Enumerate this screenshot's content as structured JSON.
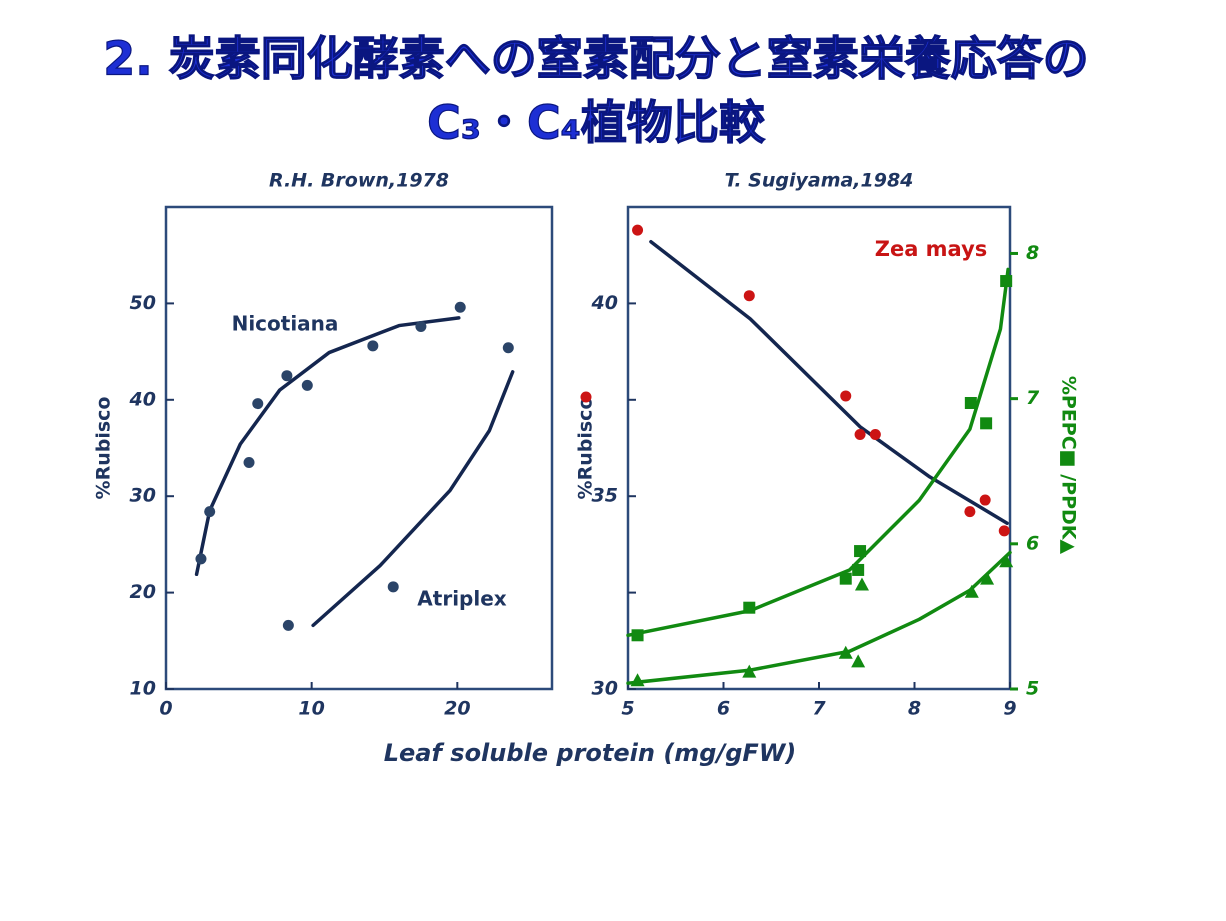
{
  "title": [
    "2. 炭素同化酵素への窒素配分と窒素栄養応答の",
    "C₃・C₄植物比較"
  ],
  "xlabel": "Leaf soluble protein (mg/gFW)",
  "chart_data": [
    {
      "type": "scatter",
      "source": "R.H. Brown,1978",
      "ylabel": "%Rubisco",
      "axis_color": "#1f3560",
      "xlim": [
        0,
        26.5
      ],
      "ylim": [
        10,
        60
      ],
      "xticks": [
        0,
        10,
        20
      ],
      "yticks": [
        10,
        20,
        30,
        40,
        50
      ],
      "series": [
        {
          "name": "Nicotiana",
          "color": "#2b4468",
          "marker": "circle",
          "x": [
            2.4,
            3.0,
            5.7,
            6.3,
            8.3,
            9.7,
            14.2,
            17.5,
            20.2
          ],
          "values": [
            23.5,
            28.4,
            33.5,
            39.6,
            42.5,
            41.5,
            45.6,
            47.6,
            49.6
          ]
        },
        {
          "name": "Atriplex",
          "color": "#2b4468",
          "marker": "circle",
          "x": [
            8.4,
            15.6,
            23.5
          ],
          "values": [
            16.6,
            20.6,
            45.4
          ]
        }
      ],
      "fits": [
        {
          "color": "#14264f",
          "x": [
            2.1,
            3.0,
            5.1,
            7.8,
            11.2,
            16.0,
            20.1
          ],
          "values": [
            21.9,
            28.5,
            35.4,
            41.0,
            44.9,
            47.7,
            48.5
          ]
        },
        {
          "color": "#14264f",
          "x": [
            10.1,
            14.7,
            19.5,
            22.2,
            23.8
          ],
          "values": [
            16.6,
            22.8,
            30.6,
            36.8,
            42.9
          ]
        }
      ]
    },
    {
      "type": "scatter",
      "source": "T. Sugiyama,1984",
      "ylabel": "%Rubisco",
      "y2label": "%PEPC■ /PPDK▲",
      "axis_color": "#1f3560",
      "y2_color": "#118a11",
      "annotation": "Zea mays",
      "annotation_color": "#c81414",
      "xlim": [
        5,
        9
      ],
      "ylim": [
        30,
        42.5
      ],
      "y2lim": [
        5,
        8.32
      ],
      "xticks": [
        5,
        6,
        7,
        8,
        9
      ],
      "yticks": [
        30,
        35,
        40
      ],
      "yminor_ticks": [
        32.5,
        37.5
      ],
      "y2ticks": [
        5,
        6,
        7,
        8
      ],
      "series": [
        {
          "color": "#cc1414",
          "marker": "circle",
          "x": [
            5.1,
            6.27,
            7.28,
            7.43,
            7.59,
            8.58,
            8.74,
            8.94
          ],
          "values": [
            41.9,
            40.2,
            37.6,
            36.6,
            36.6,
            34.6,
            34.9,
            34.1
          ]
        },
        {
          "color": "#118a11",
          "marker": "square",
          "axis": "y2",
          "x": [
            5.1,
            6.27,
            7.28,
            7.41,
            7.43,
            8.59,
            8.75,
            8.96
          ],
          "values": [
            5.37,
            5.56,
            5.76,
            5.82,
            5.95,
            6.97,
            6.83,
            7.81
          ]
        },
        {
          "color": "#118a11",
          "marker": "triangle",
          "axis": "y2",
          "x": [
            5.1,
            6.27,
            7.28,
            7.41,
            7.45,
            8.6,
            8.76,
            8.96
          ],
          "values": [
            5.06,
            5.12,
            5.25,
            5.19,
            5.72,
            5.67,
            5.76,
            5.88
          ]
        }
      ],
      "fits": [
        {
          "color": "#14264f",
          "x": [
            5.24,
            6.28,
            7.43,
            8.16,
            8.97
          ],
          "values": [
            41.6,
            39.6,
            36.8,
            35.5,
            34.3
          ]
        },
        {
          "color": "#118a11",
          "axis": "y2",
          "x": [
            5.0,
            6.28,
            7.32,
            8.05,
            8.58,
            8.9,
            8.98
          ],
          "values": [
            5.37,
            5.54,
            5.82,
            6.3,
            6.79,
            7.48,
            7.89
          ]
        },
        {
          "color": "#118a11",
          "axis": "y2",
          "x": [
            5.0,
            6.28,
            7.32,
            8.05,
            8.58,
            9.0
          ],
          "values": [
            5.04,
            5.13,
            5.26,
            5.48,
            5.68,
            5.94
          ]
        }
      ]
    }
  ]
}
